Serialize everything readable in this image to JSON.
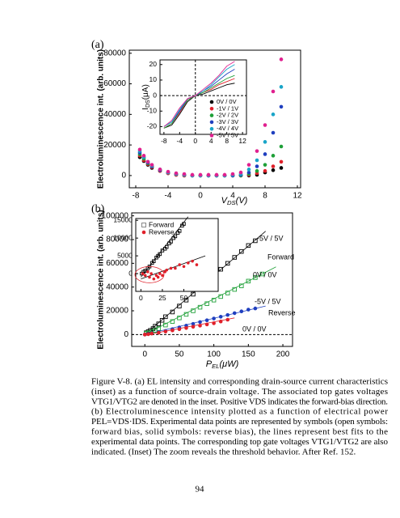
{
  "panel_labels": [
    "(a)",
    "(b)"
  ],
  "chart_data": [
    {
      "type": "scatter",
      "y_label": "Electroluminescence int. (arb. units)",
      "x_label_parts": [
        "V",
        "DS",
        "(V)"
      ],
      "xlim": [
        -8.8,
        12.4
      ],
      "ylim": [
        -8000,
        82000
      ],
      "xticks": [
        -8,
        -4,
        0,
        4,
        8,
        12
      ],
      "yticks": [
        0,
        20000,
        40000,
        60000,
        80000
      ],
      "legend": true,
      "series": [
        {
          "name": "0V / 0V",
          "color": "#000000",
          "marker": "filled",
          "x": [
            -7.5,
            -7,
            -6.5,
            -6,
            -5,
            -4,
            -3,
            -2,
            -1,
            0,
            1,
            2,
            3,
            4,
            5,
            6,
            7,
            8,
            9,
            10
          ],
          "values": [
            12000,
            9500,
            7000,
            5000,
            3000,
            1500,
            500,
            0,
            0,
            0,
            0,
            0,
            0,
            0,
            0,
            0,
            500,
            2000,
            3500,
            5000
          ]
        },
        {
          "name": "-1V / 1V",
          "color": "#e0202a",
          "marker": "filled",
          "x": [
            -7.5,
            -7,
            -6.5,
            -6,
            -5,
            -4,
            -3,
            -2,
            -1,
            0,
            1,
            2,
            3,
            4,
            5,
            6,
            7,
            8,
            9,
            10
          ],
          "values": [
            13000,
            10000,
            7500,
            5500,
            3000,
            1500,
            500,
            0,
            0,
            0,
            0,
            0,
            0,
            0,
            0,
            500,
            1500,
            3000,
            6000,
            9000
          ]
        },
        {
          "name": "-2V / 2V",
          "color": "#1fa038",
          "marker": "filled",
          "x": [
            -7.5,
            -7,
            -6.5,
            -6,
            -5,
            -4,
            -3,
            -2,
            -1,
            0,
            1,
            2,
            3,
            4,
            5,
            6,
            7,
            8,
            9,
            10
          ],
          "values": [
            14000,
            11000,
            8000,
            6000,
            3500,
            2000,
            1000,
            500,
            0,
            0,
            0,
            0,
            0,
            0,
            0,
            1000,
            3000,
            7000,
            13000,
            19000
          ]
        },
        {
          "name": "-3V / 3V",
          "color": "#1f3fbf",
          "marker": "filled",
          "x": [
            -7.5,
            -7,
            -6.5,
            -6,
            -5,
            -4,
            -3,
            -2,
            -1,
            0,
            1,
            2,
            3,
            4,
            5,
            6,
            7,
            8,
            9,
            10
          ],
          "values": [
            15000,
            12000,
            8500,
            6000,
            3500,
            2000,
            1000,
            500,
            0,
            0,
            0,
            0,
            0,
            0,
            500,
            2000,
            6000,
            14000,
            28000,
            45000
          ]
        },
        {
          "name": "-4V / 4V",
          "color": "#19a5c8",
          "marker": "filled",
          "x": [
            -7.5,
            -7,
            -6.5,
            -6,
            -5,
            -4,
            -3,
            -2,
            -1,
            0,
            1,
            2,
            3,
            4,
            5,
            6,
            7,
            8,
            9,
            10
          ],
          "values": [
            16000,
            12000,
            9000,
            6500,
            4000,
            2000,
            1000,
            500,
            0,
            0,
            0,
            0,
            0,
            500,
            1000,
            4000,
            10000,
            22000,
            40000,
            58000
          ]
        },
        {
          "name": "-5V / 5V",
          "color": "#e0208f",
          "marker": "filled",
          "x": [
            -7.5,
            -7,
            -6.5,
            -6,
            -5,
            -4,
            -3,
            -2,
            -1,
            0,
            1,
            2,
            3,
            4,
            5,
            6,
            7,
            8,
            9,
            10
          ],
          "values": [
            17000,
            13000,
            9000,
            7000,
            4000,
            2500,
            1500,
            1000,
            500,
            500,
            500,
            500,
            500,
            1000,
            2000,
            7000,
            16000,
            33000,
            55000,
            76000
          ]
        }
      ]
    },
    {
      "type": "line",
      "y_label_parts": [
        "I",
        "DS",
        "(μA)"
      ],
      "xlim": [
        -9,
        13
      ],
      "ylim": [
        -25,
        23
      ],
      "xticks": [
        -8,
        -4,
        0,
        4,
        8,
        12
      ],
      "yticks": [
        -20,
        -10,
        0,
        10,
        20
      ],
      "zero_lines": true,
      "series": [
        {
          "color": "#000000",
          "x": [
            -8,
            -6,
            -4,
            -2,
            0,
            2,
            4,
            6,
            8,
            10
          ],
          "values": [
            -21,
            -19,
            -12,
            -4,
            0,
            1,
            3,
            5,
            7,
            8
          ]
        },
        {
          "color": "#e0202a",
          "x": [
            -8,
            -6,
            -4,
            -2,
            0,
            2,
            4,
            6,
            8,
            10
          ],
          "values": [
            -21,
            -18,
            -11,
            -3,
            0,
            2,
            4,
            7,
            9,
            11
          ]
        },
        {
          "color": "#1fa038",
          "x": [
            -8,
            -6,
            -4,
            -2,
            0,
            2,
            4,
            6,
            8,
            10
          ],
          "values": [
            -21,
            -18,
            -10,
            -3,
            0,
            2,
            5,
            8,
            11,
            13
          ]
        },
        {
          "color": "#1f3fbf",
          "x": [
            -8,
            -6,
            -4,
            -2,
            0,
            2,
            4,
            6,
            8,
            10
          ],
          "values": [
            -20,
            -17,
            -10,
            -2,
            0,
            3,
            6,
            10,
            14,
            17
          ]
        },
        {
          "color": "#19a5c8",
          "x": [
            -8,
            -6,
            -4,
            -2,
            0,
            2,
            4,
            6,
            8,
            10
          ],
          "values": [
            -20,
            -17,
            -9,
            -2,
            0,
            3,
            7,
            12,
            17,
            20
          ]
        },
        {
          "color": "#e0208f",
          "x": [
            -8,
            -6,
            -4,
            -2,
            0,
            2,
            4,
            6,
            8,
            10
          ],
          "values": [
            -20,
            -16,
            -8,
            -2,
            0,
            4,
            8,
            13,
            19,
            22
          ]
        }
      ]
    },
    {
      "type": "scatter",
      "y_label": "Electroluminescence int. (arb. units)",
      "x_label_parts": [
        "P",
        "EL",
        "(μW)"
      ],
      "xlim": [
        -19,
        214
      ],
      "ylim": [
        -10000,
        102500
      ],
      "xticks": [
        0,
        50,
        100,
        150,
        200
      ],
      "yticks": [
        0,
        20000,
        40000,
        60000,
        80000,
        100000
      ],
      "zero_lines": true,
      "series": [
        {
          "color": "#000000",
          "marker": "open",
          "x": [
            2,
            5,
            8,
            12,
            15,
            20,
            25,
            30,
            40,
            50,
            60,
            70,
            80,
            90,
            100,
            110,
            120,
            130,
            140,
            150,
            160
          ],
          "values": [
            1500,
            2500,
            3500,
            5000,
            7000,
            9000,
            12000,
            15000,
            19000,
            24000,
            29000,
            34000,
            39000,
            44000,
            50000,
            55000,
            60000,
            65000,
            70000,
            75000,
            79000
          ]
        },
        {
          "color": "#1fa038",
          "marker": "open",
          "x": [
            2,
            5,
            10,
            15,
            20,
            30,
            40,
            50,
            60,
            70,
            80,
            90,
            100,
            110,
            120,
            130,
            140,
            150,
            160,
            170
          ],
          "values": [
            1000,
            1500,
            2500,
            3500,
            5000,
            8000,
            11000,
            14000,
            17000,
            20000,
            23000,
            26000,
            29000,
            32000,
            35000,
            38000,
            41000,
            45000,
            48000,
            51000
          ]
        },
        {
          "color": "#1f3fbf",
          "marker": "filled",
          "x": [
            0,
            5,
            10,
            20,
            30,
            40,
            50,
            60,
            70,
            80,
            90,
            100,
            110,
            120,
            130,
            140,
            150,
            160
          ],
          "values": [
            0,
            500,
            1000,
            2000,
            3000,
            4500,
            6000,
            7500,
            9000,
            10500,
            12000,
            13500,
            15000,
            16500,
            18000,
            19500,
            21000,
            22000
          ]
        },
        {
          "color": "#e0202a",
          "marker": "filled",
          "x": [
            0,
            5,
            10,
            20,
            30,
            40,
            50,
            60,
            70,
            80,
            90,
            100,
            110,
            120
          ],
          "values": [
            0,
            300,
            800,
            1500,
            2500,
            3500,
            4500,
            5500,
            6500,
            7500,
            8500,
            9500,
            11000,
            12500
          ]
        }
      ],
      "fits": [
        {
          "color": "#000000",
          "x": [
            0,
            175
          ],
          "values": [
            0,
            87000
          ]
        },
        {
          "color": "#1fa038",
          "x": [
            0,
            190
          ],
          "values": [
            0,
            57000
          ]
        },
        {
          "color": "#1f3fbf",
          "x": [
            0,
            175
          ],
          "values": [
            0,
            24000
          ]
        },
        {
          "color": "#e0202a",
          "x": [
            0,
            130
          ],
          "values": [
            -500,
            14000
          ]
        }
      ],
      "annotations": [
        {
          "text": "-5V / 5V",
          "color": "#000000"
        },
        {
          "text": "Forward",
          "color": "#000000"
        },
        {
          "text": "0V / 0V",
          "color": "#1fa038"
        },
        {
          "text": "-5V / 5V",
          "color": "#1f3fbf"
        },
        {
          "text": "Reverse",
          "color": "#000000"
        },
        {
          "text": "0V / 0V",
          "color": "#e0202a"
        }
      ]
    },
    {
      "type": "scatter",
      "xlim": [
        -6,
        90
      ],
      "ylim": [
        -5000,
        15500
      ],
      "xticks": [
        0,
        25,
        50
      ],
      "yticks": [
        0,
        5000,
        10000,
        15000
      ],
      "legend": true,
      "series": [
        {
          "name": "Forward",
          "color": "#000000",
          "marker": "open",
          "x": [
            1,
            3,
            5,
            8,
            10,
            13,
            15,
            18,
            20,
            22,
            25,
            28,
            30,
            33,
            35,
            38,
            40,
            43,
            45,
            48,
            50
          ],
          "values": [
            0,
            500,
            800,
            1500,
            2000,
            3000,
            3500,
            4500,
            5000,
            5500,
            6500,
            7000,
            7500,
            8500,
            9000,
            10000,
            10500,
            11500,
            12000,
            13500,
            14000
          ]
        },
        {
          "name": "Reverse",
          "color": "#e0202a",
          "marker": "filled",
          "x": [
            2,
            5,
            8,
            10,
            12,
            15,
            18,
            20,
            22,
            25,
            28,
            30,
            35,
            40,
            45,
            50,
            55,
            60,
            65
          ],
          "values": [
            0,
            -500,
            500,
            -1000,
            0,
            -1500,
            -500,
            -1000,
            0,
            -500,
            500,
            1000,
            1500,
            1500,
            2500,
            2000,
            3000,
            3500,
            2500
          ]
        }
      ],
      "fits": [
        {
          "color": "#000000",
          "x": [
            0,
            55
          ],
          "values": [
            -1000,
            16000
          ]
        },
        {
          "color": "#000000",
          "x": [
            0,
            75
          ],
          "values": [
            -1500,
            5000
          ]
        }
      ]
    }
  ],
  "caption": [
    "Figure V-8.  (a) EL intensity and corresponding drain-source current characteristics",
    "(inset) as a function of source-drain voltage. The associated top gates voltages",
    "VTG1/VTG2 are denoted in the inset. Positive VDS indicates the forward-bias direction.",
    "(b)  Electroluminescence  intensity  plotted  as  a  function  of  electrical  power",
    "PEL=VDS·IDS. Experimental data points are represented by symbols (open symbols:",
    "forward bias, solid symbols: reverse bias), the lines represent best fits to the",
    "experimental data points. The corresponding top gate voltages VTG1/VTG2 are also",
    "indicated. (Inset) The zoom reveals the threshold behavior.  After Ref. 152."
  ],
  "page_number": "94"
}
